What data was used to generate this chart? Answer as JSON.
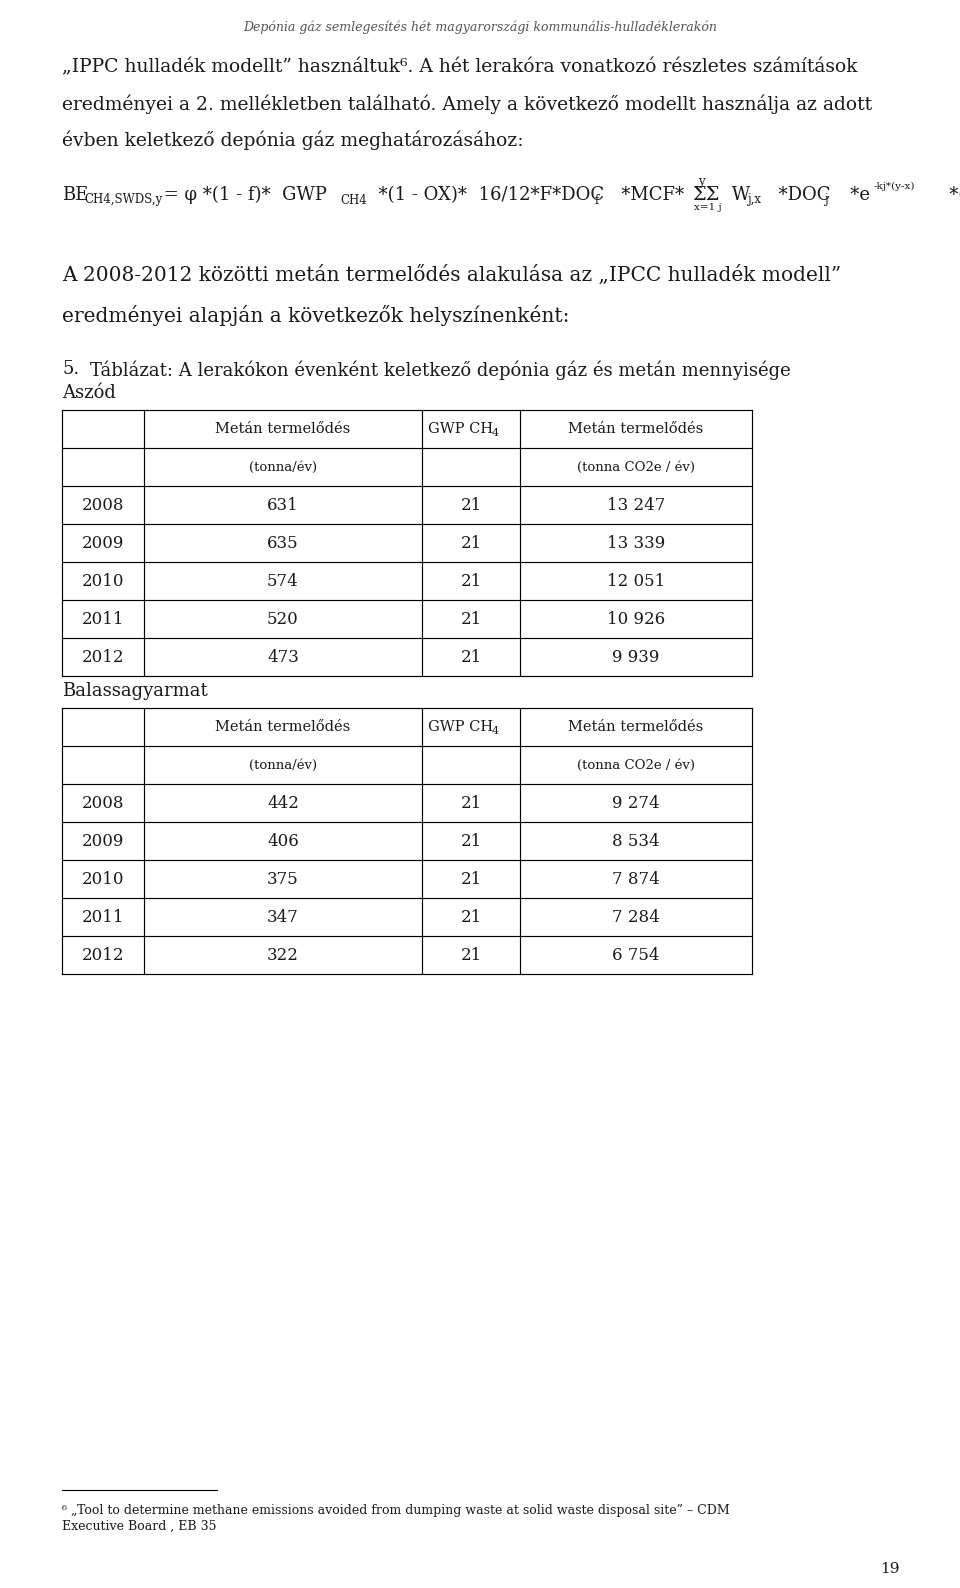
{
  "header": "Depónia gáz semlegesítés hét magyarországi kommunális-hulladéklerakón",
  "page_number": "19",
  "bg_color": "#ffffff",
  "text_color": "#1a1a1a",
  "header_color": "#555555",
  "table1_location": "Aszód",
  "table1_headers": [
    "",
    "Metán termelődés",
    "GWP CH4",
    "Metán termelődés"
  ],
  "table1_subheaders": [
    "",
    "(tonna/év)",
    "",
    "(tonna CO2e / év)"
  ],
  "table1_data": [
    [
      "2008",
      "631",
      "21",
      "13 247"
    ],
    [
      "2009",
      "635",
      "21",
      "13 339"
    ],
    [
      "2010",
      "574",
      "21",
      "12 051"
    ],
    [
      "2011",
      "520",
      "21",
      "10 926"
    ],
    [
      "2012",
      "473",
      "21",
      "9 939"
    ]
  ],
  "table2_location": "Balassagyarmat",
  "table2_headers": [
    "",
    "Metán termelődés",
    "GWP CH4",
    "Metán termelődés"
  ],
  "table2_subheaders": [
    "",
    "(tonna/év)",
    "",
    "(tonna CO2e / év)"
  ],
  "table2_data": [
    [
      "2008",
      "442",
      "21",
      "9 274"
    ],
    [
      "2009",
      "406",
      "21",
      "8 534"
    ],
    [
      "2010",
      "375",
      "21",
      "7 874"
    ],
    [
      "2011",
      "347",
      "21",
      "7 284"
    ],
    [
      "2012",
      "322",
      "21",
      "6 754"
    ]
  ]
}
